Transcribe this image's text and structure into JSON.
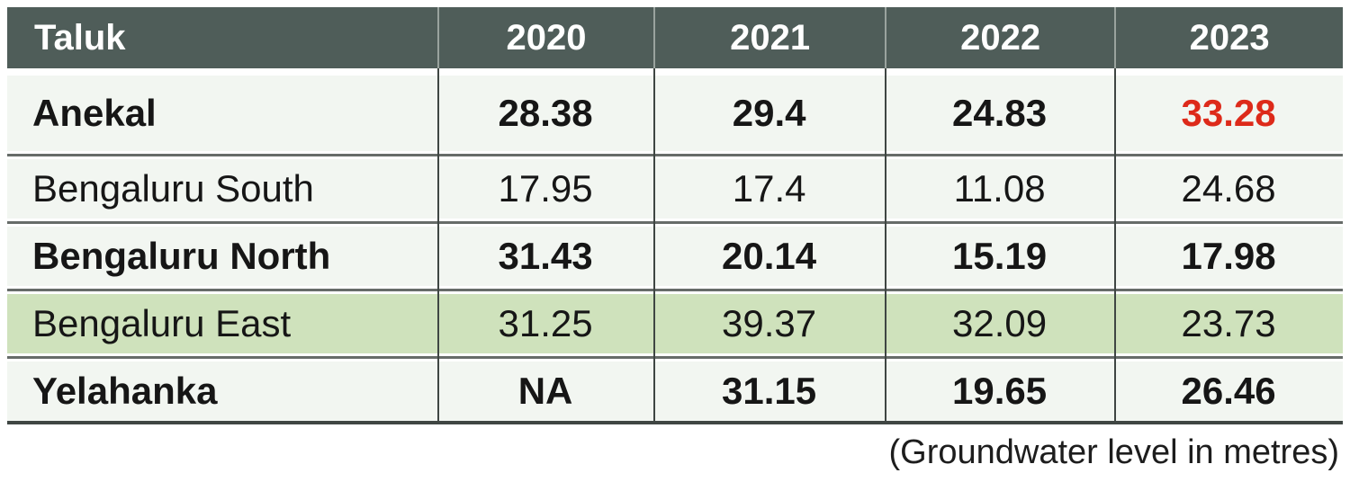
{
  "colors": {
    "header_bg": "#4f5d59",
    "header_text": "#ffffff",
    "row_bg": "#f2f6f1",
    "highlight_row_bg": "#cfe2bc",
    "accent_red": "#dd2a1a",
    "body_text": "#161616",
    "divider_dark": "#3f4643",
    "separator_gray": "#676c69"
  },
  "chart_data": {
    "type": "table",
    "title": "",
    "columns": [
      "Taluk",
      "2020",
      "2021",
      "2022",
      "2023"
    ],
    "rows": [
      {
        "taluk": "Anekal",
        "values": [
          "28.38",
          "29.4",
          "24.83",
          "33.28"
        ],
        "bold": true,
        "highlight_last_value_red": true
      },
      {
        "taluk": "Bengaluru South",
        "values": [
          "17.95",
          "17.4",
          "11.08",
          "24.68"
        ],
        "bold": false
      },
      {
        "taluk": "Bengaluru North",
        "values": [
          "31.43",
          "20.14",
          "15.19",
          "17.98"
        ],
        "bold": true
      },
      {
        "taluk": "Bengaluru East",
        "values": [
          "31.25",
          "39.37",
          "32.09",
          "23.73"
        ],
        "bold": false,
        "row_highlighted_green": true
      },
      {
        "taluk": "Yelahanka",
        "values": [
          "NA",
          "31.15",
          "19.65",
          "26.46"
        ],
        "bold": true
      }
    ],
    "note": "(Groundwater level in metres)"
  }
}
